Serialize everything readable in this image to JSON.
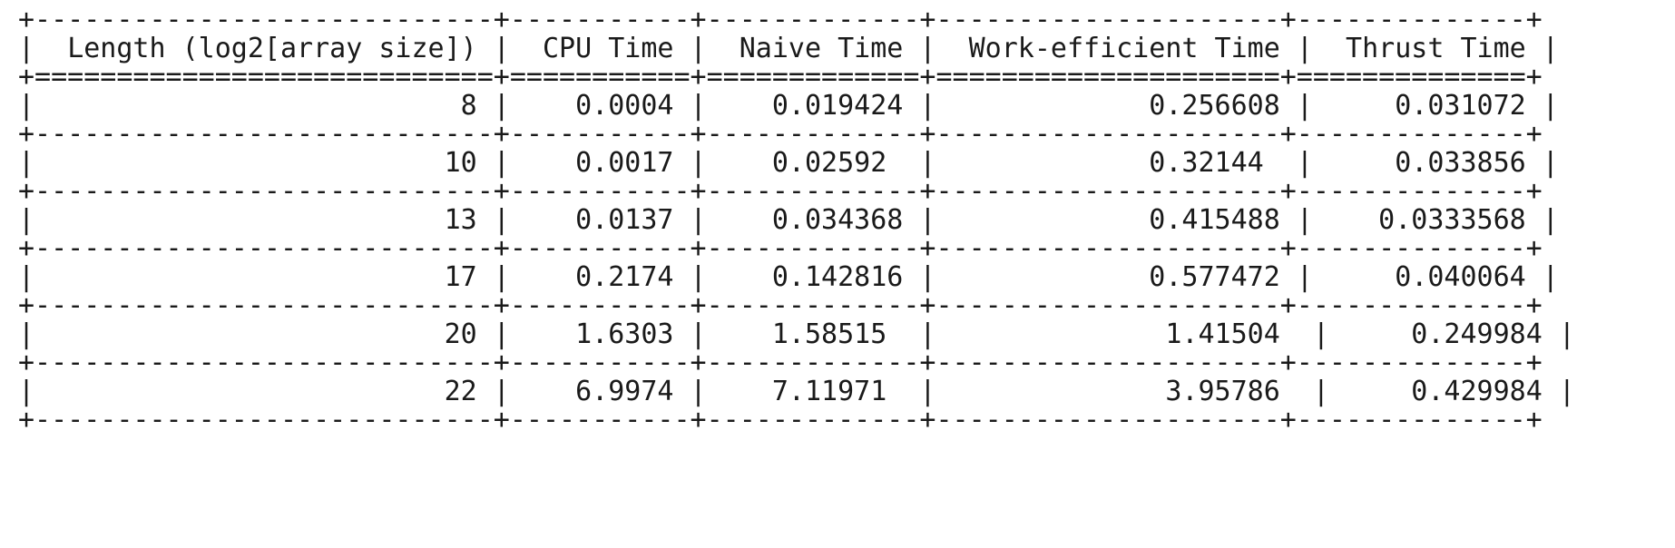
{
  "table": {
    "columns": [
      "Length (log2[array size])",
      "CPU Time",
      "Naive Time",
      "Work-efficient Time",
      "Thrust Time"
    ],
    "rows": [
      [
        "8",
        "0.0004",
        "0.019424",
        "0.256608",
        "0.031072"
      ],
      [
        "10",
        "0.0017",
        "0.02592",
        "0.32144",
        "0.033856"
      ],
      [
        "13",
        "0.0137",
        "0.034368",
        "0.415488",
        "0.0333568"
      ],
      [
        "17",
        "0.2174",
        "0.142816",
        "0.577472",
        "0.040064"
      ],
      [
        "20",
        "1.6303",
        "1.58515",
        "1.41504",
        "0.249984"
      ],
      [
        "22",
        "6.9974",
        "7.11971",
        "3.95786",
        "0.429984"
      ]
    ]
  }
}
